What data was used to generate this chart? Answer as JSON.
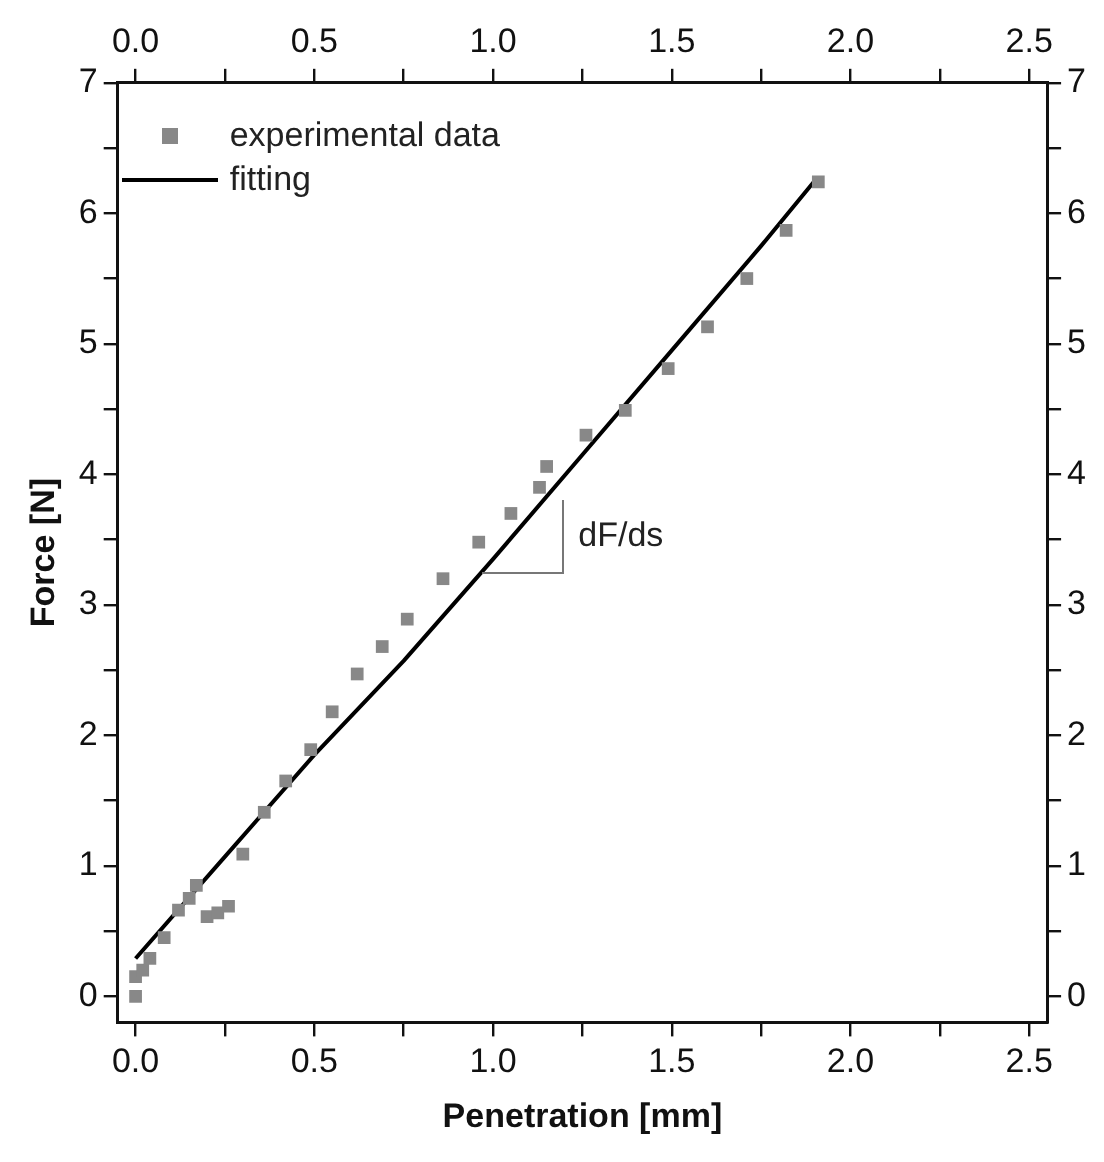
{
  "chart_data": {
    "type": "scatter",
    "xlabel": "Penetration [mm]",
    "ylabel": "Force [N]",
    "xlim": [
      -0.05,
      2.55
    ],
    "ylim": [
      -0.2,
      7
    ],
    "xticks": [
      {
        "value": 0,
        "label": "0.0"
      },
      {
        "value": 0.25,
        "label": null
      },
      {
        "value": 0.5,
        "label": "0.5"
      },
      {
        "value": 0.75,
        "label": null
      },
      {
        "value": 1,
        "label": "1.0"
      },
      {
        "value": 1.25,
        "label": null
      },
      {
        "value": 1.5,
        "label": "1.5"
      },
      {
        "value": 1.75,
        "label": null
      },
      {
        "value": 2,
        "label": "2.0"
      },
      {
        "value": 2.25,
        "label": null
      },
      {
        "value": 2.5,
        "label": "2.5"
      }
    ],
    "x2lim": [
      -0.05,
      2.55
    ],
    "x2ticks": [
      {
        "value": 0,
        "label": "0.0"
      },
      {
        "value": 0.25,
        "label": null
      },
      {
        "value": 0.5,
        "label": "0.5"
      },
      {
        "value": 0.75,
        "label": null
      },
      {
        "value": 1,
        "label": "1.0"
      },
      {
        "value": 1.25,
        "label": null
      },
      {
        "value": 1.5,
        "label": "1.5"
      },
      {
        "value": 1.75,
        "label": null
      },
      {
        "value": 2,
        "label": "2.0"
      },
      {
        "value": 2.25,
        "label": null
      },
      {
        "value": 2.5,
        "label": "2.5"
      }
    ],
    "yticks": [
      0,
      {
        "value": 0.5,
        "label": null
      },
      1,
      {
        "value": 1.5,
        "label": null
      },
      2,
      {
        "value": 2.5,
        "label": null
      },
      3,
      {
        "value": 3.5,
        "label": null
      },
      4,
      {
        "value": 4.5,
        "label": null
      },
      5,
      {
        "value": 5.5,
        "label": null
      },
      6,
      {
        "value": 6.5,
        "label": null
      },
      7
    ],
    "y2lim": [
      -0.2,
      7
    ],
    "y2ticks": [
      0,
      {
        "value": 0.5,
        "label": null
      },
      1,
      {
        "value": 1.5,
        "label": null
      },
      2,
      {
        "value": 2.5,
        "label": null
      },
      3,
      {
        "value": 3.5,
        "label": null
      },
      4,
      {
        "value": 4.5,
        "label": null
      },
      5,
      {
        "value": 5.5,
        "label": null
      },
      6,
      {
        "value": 6.5,
        "label": null
      },
      7
    ],
    "grid": false,
    "legend": "top left",
    "annotations": [
      {
        "text": "dF/ds",
        "x": 0.97,
        "y": 3.25
      }
    ],
    "series": [
      {
        "name": "experimental data",
        "type": "scatter",
        "marker": "square",
        "color": "#888888",
        "x": [
          0,
          0,
          0.02,
          0.04,
          0.08,
          0.12,
          0.15,
          0.17,
          0.2,
          0.23,
          0.26,
          0.3,
          0.36,
          0.42,
          0.49,
          0.55,
          0.62,
          0.69,
          0.76,
          0.86,
          0.96,
          1.05,
          1.13,
          1.15,
          1.26,
          1.37,
          1.49,
          1.6,
          1.71,
          1.82,
          1.91
        ],
        "values": [
          0,
          0.15,
          0.2,
          0.29,
          0.45,
          0.66,
          0.75,
          0.85,
          0.61,
          0.64,
          0.69,
          1.09,
          1.41,
          1.65,
          1.89,
          2.18,
          2.47,
          2.68,
          2.89,
          3.2,
          3.48,
          3.7,
          3.9,
          4.06,
          4.3,
          4.49,
          4.81,
          5.13,
          5.5,
          5.87,
          6.24
        ]
      },
      {
        "name": "fitting",
        "type": "line",
        "marker": "none",
        "line_style": "solid",
        "color": "#000000",
        "x": [
          0,
          0.25,
          0.5,
          0.75,
          1,
          1.25,
          1.5,
          1.75,
          1.9
        ],
        "values": [
          0.29,
          1.07,
          1.85,
          2.57,
          3.35,
          4.15,
          4.95,
          5.75,
          6.25
        ]
      }
    ]
  }
}
